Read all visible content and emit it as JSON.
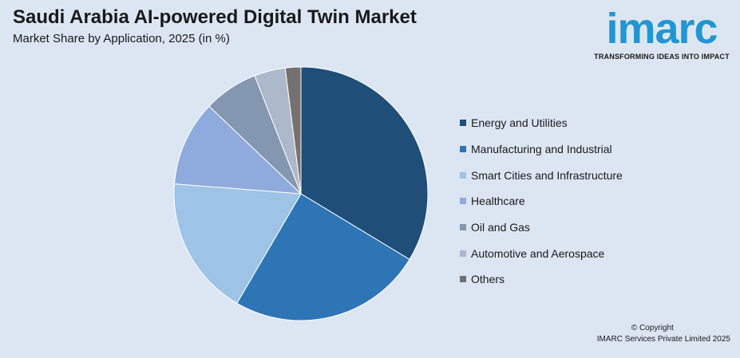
{
  "header": {
    "title": "Saudi Arabia AI-powered Digital Twin Market",
    "subtitle": "Market Share by Application, 2025 (in %)"
  },
  "logo": {
    "word": "imarc",
    "tagline": "TRANSFORMING IDEAS INTO IMPACT",
    "color": "#2196d3"
  },
  "footer": {
    "copyright": "© Copyright",
    "company": "IMARC Services Private Limited 2025"
  },
  "chart_data": {
    "type": "pie",
    "title": "Saudi Arabia AI-powered Digital Twin Market",
    "subtitle": "Market Share by Application, 2025 (in %)",
    "legend_position": "right",
    "categories": [
      "Energy and Utilities",
      "Manufacturing and Industrial",
      "Smart Cities and Infrastructure",
      "Healthcare",
      "Oil and Gas",
      "Automotive and Aerospace",
      "Others"
    ],
    "values": [
      34,
      25,
      18,
      11,
      7,
      4,
      2
    ],
    "colors": [
      "#1f4e79",
      "#2e75b6",
      "#9dc3e6",
      "#8faadc",
      "#8497b0",
      "#adb9ca",
      "#757171"
    ]
  }
}
